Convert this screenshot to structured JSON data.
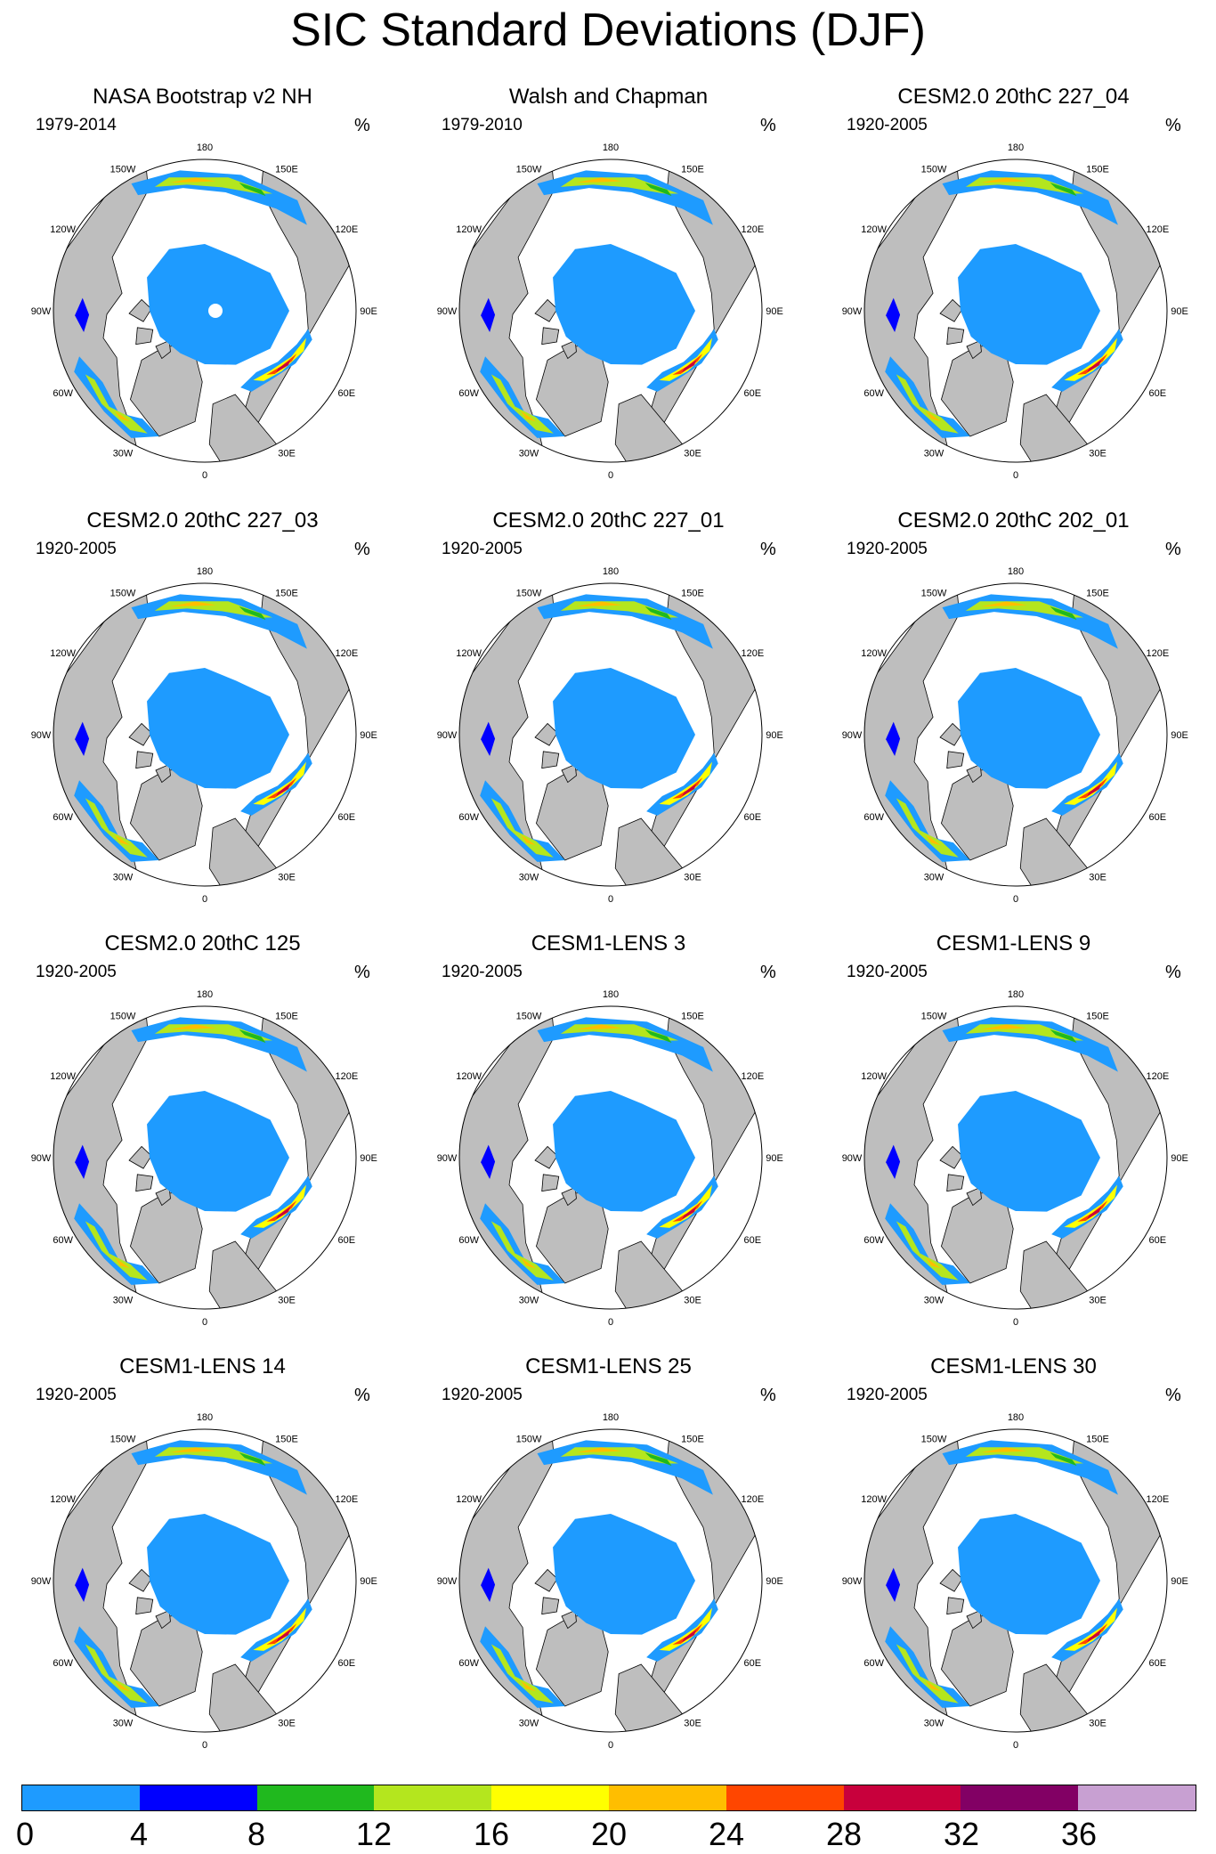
{
  "title": "SIC Standard Deviations (DJF)",
  "unit": "%",
  "longitude_labels": [
    "180",
    "150E",
    "120E",
    "90E",
    "60E",
    "30E",
    "0",
    "30W",
    "60W",
    "90W",
    "120W",
    "150W"
  ],
  "panels": [
    {
      "title": "NASA Bootstrap v2 NH",
      "period": "1979-2014",
      "pole_hole": true
    },
    {
      "title": "Walsh and Chapman",
      "period": "1979-2010",
      "pole_hole": false
    },
    {
      "title": "CESM2.0 20thC 227_04",
      "period": "1920-2005",
      "pole_hole": false
    },
    {
      "title": "CESM2.0 20thC 227_03",
      "period": "1920-2005",
      "pole_hole": false
    },
    {
      "title": "CESM2.0 20thC 227_01",
      "period": "1920-2005",
      "pole_hole": false
    },
    {
      "title": "CESM2.0 20thC 202_01",
      "period": "1920-2005",
      "pole_hole": false
    },
    {
      "title": "CESM2.0 20thC 125",
      "period": "1920-2005",
      "pole_hole": false
    },
    {
      "title": "CESM1-LENS 3",
      "period": "1920-2005",
      "pole_hole": false
    },
    {
      "title": "CESM1-LENS 9",
      "period": "1920-2005",
      "pole_hole": false
    },
    {
      "title": "CESM1-LENS 14",
      "period": "1920-2005",
      "pole_hole": false
    },
    {
      "title": "CESM1-LENS 25",
      "period": "1920-2005",
      "pole_hole": false
    },
    {
      "title": "CESM1-LENS 30",
      "period": "1920-2005",
      "pole_hole": false
    }
  ],
  "colorbar": {
    "levels": [
      "0",
      "4",
      "8",
      "12",
      "16",
      "20",
      "24",
      "28",
      "32",
      "36"
    ],
    "colors": [
      "#1e9bff",
      "#0000ff",
      "#20b91e",
      "#b4e61e",
      "#ffff00",
      "#ffbe00",
      "#ff4600",
      "#c8003c",
      "#820064",
      "#c8a0d2"
    ]
  },
  "map_colors": {
    "land": "#bebebe",
    "ocean": "#ffffff",
    "coast": "#000000"
  }
}
